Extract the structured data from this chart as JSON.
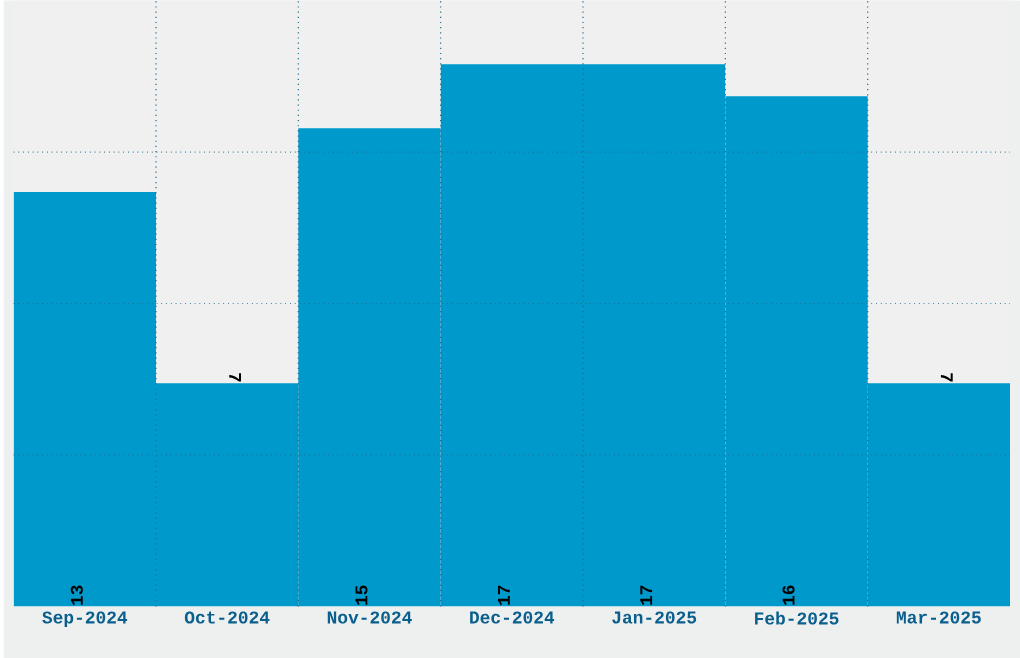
{
  "chart_data": {
    "type": "bar",
    "categories": [
      "Sep-2024",
      "Oct-2024",
      "Nov-2024",
      "Dec-2024",
      "Jan-2025",
      "Feb-2025",
      "Mar-2025"
    ],
    "values": [
      13,
      7,
      15,
      17,
      17,
      16,
      7
    ],
    "color": "#0099cc",
    "ylim": [
      0,
      19
    ],
    "yticks": [
      {
        "value": 4.75,
        "label": null
      },
      {
        "value": 9.5,
        "label": null
      },
      {
        "value": 14.25,
        "label": null
      }
    ],
    "tick_labels": "x",
    "grid": true,
    "data_labels": true
  }
}
